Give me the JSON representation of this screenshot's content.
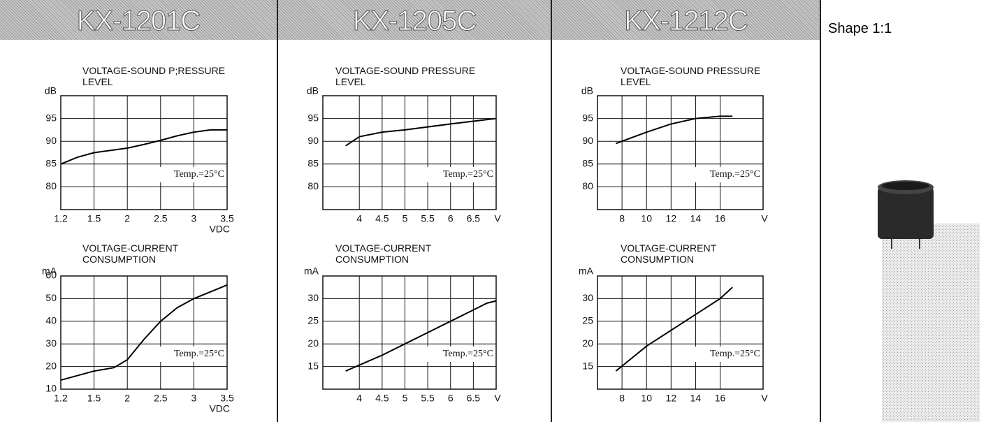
{
  "headers": [
    "KX-1201C",
    "KX-1205C",
    "KX-1212C"
  ],
  "shape_label": "Shape 1:1",
  "chart_data": [
    {
      "type": "line",
      "title": "VOLTAGE-SOUND P;RESSURE LEVEL",
      "y_unit": "dB",
      "x_label": "VDC",
      "annotation": "Temp.=25°C",
      "x_scale": "tick-spaced",
      "grid": true,
      "color": "#000000",
      "x": [
        1.2,
        1.35,
        1.5,
        1.75,
        2,
        2.25,
        2.5,
        2.75,
        3,
        3.25,
        3.5
      ],
      "values": [
        85,
        86.5,
        87.5,
        88,
        88.5,
        89.3,
        90.2,
        91.2,
        92,
        92.5,
        92.5
      ],
      "xlim": [
        1.2,
        3.5
      ],
      "xticks": [
        1.2,
        1.5,
        2,
        2.5,
        3,
        3.5
      ],
      "ylim": [
        75,
        100
      ],
      "yticks": [
        80,
        85,
        90,
        95
      ]
    },
    {
      "type": "line",
      "title": "VOLTAGE-CURRENT CONSUMPTION",
      "y_unit": "mA",
      "x_label": "VDC",
      "annotation": "Temp.=25°C",
      "x_scale": "tick-spaced",
      "grid": true,
      "color": "#000000",
      "x": [
        1.2,
        1.5,
        1.8,
        2,
        2.25,
        2.5,
        2.75,
        3,
        3.5
      ],
      "values": [
        14,
        18,
        19.5,
        23,
        32,
        40,
        46,
        50,
        56
      ],
      "xlim": [
        1.2,
        3.5
      ],
      "xticks": [
        1.2,
        1.5,
        2,
        2.5,
        3,
        3.5
      ],
      "ylim": [
        10,
        60
      ],
      "yticks": [
        10,
        20,
        30,
        40,
        50,
        60
      ]
    },
    {
      "type": "line",
      "title": "VOLTAGE-SOUND PRESSURE LEVEL",
      "y_unit": "dB",
      "x_label": "V",
      "annotation": "Temp.=25°C",
      "x_scale": "linear",
      "grid": true,
      "color": "#000000",
      "x": [
        3.7,
        4,
        4.5,
        5,
        6,
        7
      ],
      "values": [
        89,
        91,
        92,
        92.5,
        93.8,
        95
      ],
      "xlim": [
        3.2,
        7
      ],
      "xticks": [
        4,
        4.5,
        5,
        5.5,
        6,
        6.5
      ],
      "ylim": [
        75,
        100
      ],
      "yticks": [
        80,
        85,
        90,
        95
      ]
    },
    {
      "type": "line",
      "title": "VOLTAGE-CURRENT CONSUMPTION",
      "y_unit": "mA",
      "x_label": "V",
      "annotation": "Temp.=25°C",
      "x_scale": "linear",
      "grid": true,
      "color": "#000000",
      "x": [
        3.7,
        4.5,
        5,
        5.5,
        6,
        6.5,
        6.8,
        7
      ],
      "values": [
        14,
        17.5,
        20,
        22.5,
        25,
        27.5,
        29,
        29.5
      ],
      "xlim": [
        3.2,
        7
      ],
      "xticks": [
        4,
        4.5,
        5,
        5.5,
        6,
        6.5
      ],
      "ylim": [
        10,
        35
      ],
      "yticks": [
        15,
        20,
        25,
        30
      ]
    },
    {
      "type": "line",
      "title": "VOLTAGE-SOUND PRESSURE LEVEL",
      "y_unit": "dB",
      "x_label": "V",
      "annotation": "Temp.=25°C",
      "x_scale": "linear",
      "grid": true,
      "color": "#000000",
      "x": [
        7.5,
        10,
        12,
        14,
        16,
        17
      ],
      "values": [
        89.5,
        92,
        93.8,
        95,
        95.5,
        95.5
      ],
      "xlim": [
        6,
        19.5
      ],
      "xticks": [
        8,
        10,
        12,
        14,
        16
      ],
      "ylim": [
        75,
        100
      ],
      "yticks": [
        80,
        85,
        90,
        95
      ]
    },
    {
      "type": "line",
      "title": "VOLTAGE-CURRENT CONSUMPTION",
      "y_unit": "mA",
      "x_label": "V",
      "annotation": "Temp.=25°C",
      "x_scale": "linear",
      "grid": true,
      "color": "#000000",
      "x": [
        7.5,
        10,
        12,
        14,
        16,
        17
      ],
      "values": [
        14,
        19.5,
        23,
        26.5,
        30,
        32.5
      ],
      "xlim": [
        6,
        19.5
      ],
      "xticks": [
        8,
        10,
        12,
        14,
        16
      ],
      "ylim": [
        10,
        35
      ],
      "yticks": [
        15,
        20,
        25,
        30
      ]
    }
  ]
}
